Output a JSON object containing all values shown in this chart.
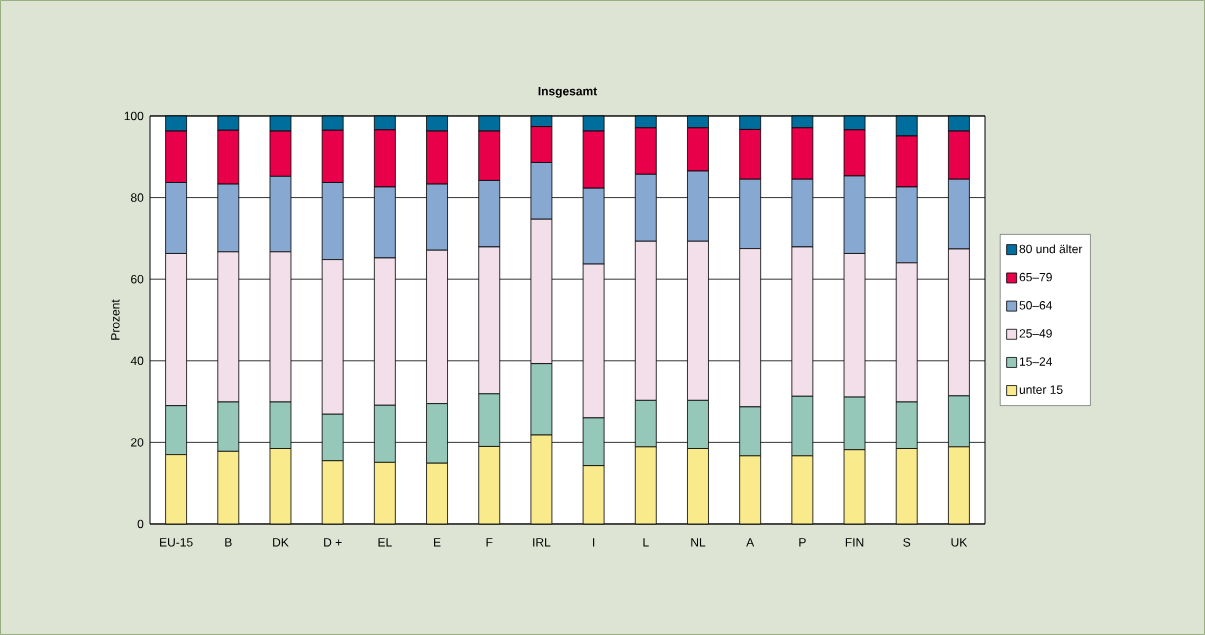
{
  "chart_data": {
    "type": "bar",
    "stacked": true,
    "title": "Insgesamt",
    "ylabel": "Prozent",
    "categories": [
      "EU-15",
      "B",
      "DK",
      "D +",
      "EL",
      "E",
      "F",
      "IRL",
      "I",
      "L",
      "NL",
      "A",
      "P",
      "FIN",
      "S",
      "UK"
    ],
    "series": [
      {
        "name": "unter 15",
        "color": "#f9ea8c",
        "values": [
          17,
          17.8,
          18.5,
          15.5,
          15.1,
          14.9,
          19,
          21.8,
          14.3,
          18.9,
          18.5,
          16.7,
          16.7,
          18.2,
          18.5,
          18.9
        ]
      },
      {
        "name": "15–24",
        "color": "#96c8b9",
        "values": [
          12,
          12.1,
          11.4,
          11.4,
          14,
          14.6,
          12.9,
          17.5,
          11.7,
          11.4,
          11.8,
          12,
          14.6,
          12.9,
          11.4,
          12.5
        ]
      },
      {
        "name": "25–49",
        "color": "#f2dfe9",
        "values": [
          37.3,
          36.8,
          36.8,
          37.9,
          36.1,
          37.6,
          36,
          35.4,
          37.7,
          39,
          39,
          38.8,
          36.6,
          35.2,
          34.1,
          36
        ]
      },
      {
        "name": "50–64",
        "color": "#87a8d0",
        "values": [
          17.4,
          16.6,
          18.5,
          18.9,
          17.4,
          16.2,
          16.3,
          13.9,
          18.6,
          16.4,
          17.2,
          17,
          16.6,
          19,
          18.6,
          17.1
        ]
      },
      {
        "name": "65–79",
        "color": "#e8004a",
        "values": [
          12.6,
          13.2,
          11.1,
          12.8,
          14,
          13,
          12.1,
          8.8,
          14,
          11.4,
          10.6,
          12.2,
          12.6,
          11.3,
          12.5,
          11.8
        ]
      },
      {
        "name": "80 und älter",
        "color": "#006e9c",
        "values": [
          3.7,
          3.5,
          3.7,
          3.5,
          3.4,
          3.7,
          3.7,
          2.6,
          3.7,
          2.9,
          2.9,
          3.3,
          2.9,
          3.4,
          4.9,
          3.7
        ]
      }
    ],
    "ylim": [
      0,
      100
    ],
    "yticks": [
      0,
      20,
      40,
      60,
      80,
      100
    ],
    "grid": "y",
    "legend": "right"
  }
}
